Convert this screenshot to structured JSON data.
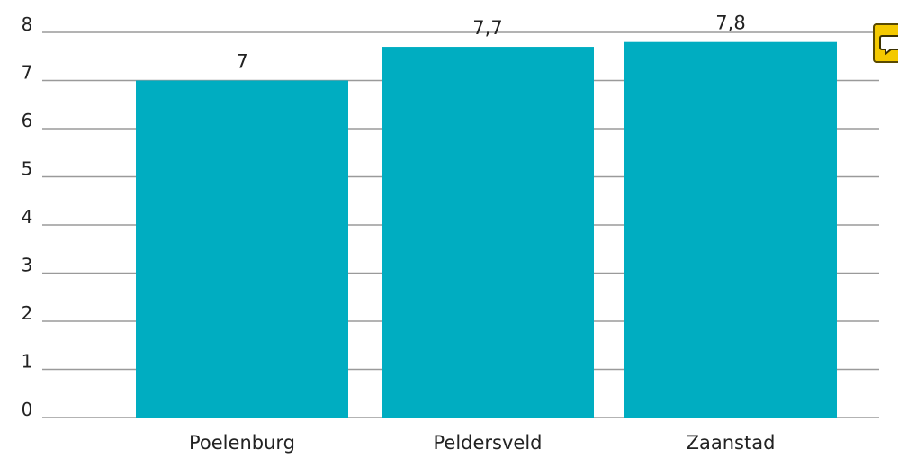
{
  "chart_data": {
    "type": "bar",
    "categories": [
      "Poelenburg",
      "Peldersveld",
      "Zaanstad"
    ],
    "values": [
      7,
      7.7,
      7.8
    ],
    "value_labels": [
      "7",
      "7,7",
      "7,8"
    ],
    "yticks": [
      "0",
      "1",
      "2",
      "3",
      "4",
      "5",
      "6",
      "7",
      "8"
    ],
    "ylim": [
      0,
      8
    ],
    "grid": true,
    "bar_color": "#00adc1",
    "grid_color": "#9a9a9a"
  },
  "icons": {
    "comment": "speech-bubble-icon"
  }
}
